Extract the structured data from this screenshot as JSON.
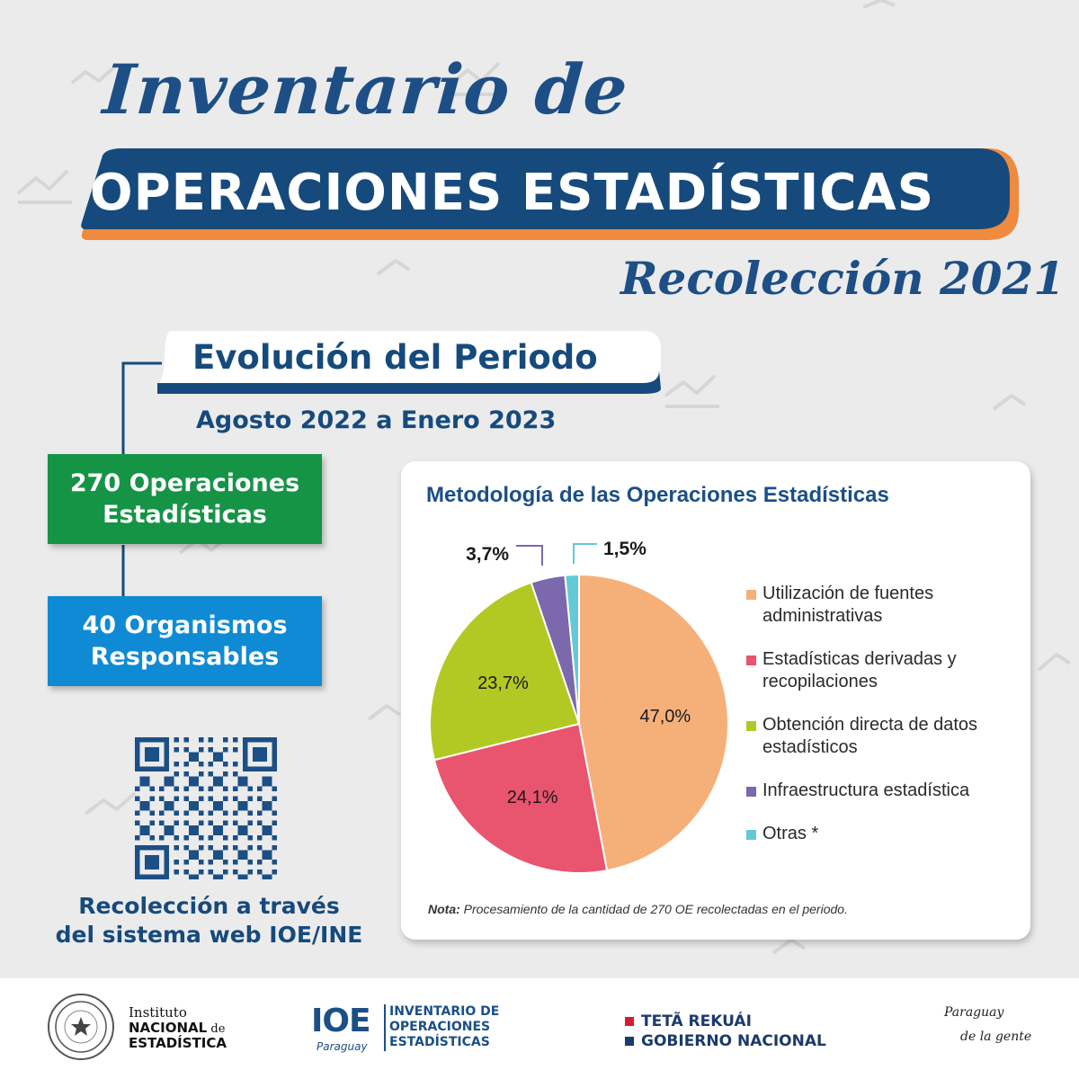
{
  "header": {
    "title_line1": "Inventario de",
    "title_banner": "OPERACIONES ESTADÍSTICAS",
    "title_sub": "Recolección 2021"
  },
  "period": {
    "title": "Evolución del Periodo",
    "range": "Agosto 2022 a Enero 2023"
  },
  "stats": {
    "operations_line1": "270 Operaciones",
    "operations_line2": "Estadísticas",
    "organisms_line1": "40 Organismos",
    "organisms_line2": "Responsables"
  },
  "collection": {
    "line1": "Recolección a través",
    "line2": "del sistema web IOE/INE"
  },
  "chart_data": {
    "type": "pie",
    "title": "Metodología de las Operaciones Estadísticas",
    "labels": [
      "Utilización de fuentes administrativas",
      "Estadísticas derivadas y recopilaciones",
      "Obtención directa de datos estadísticos",
      "Infraestructura estadística",
      "Otras *"
    ],
    "values": [
      47.0,
      24.1,
      23.7,
      3.7,
      1.5
    ],
    "value_labels": [
      "47,0%",
      "24,1%",
      "23,7%",
      "3,7%",
      "1,5%"
    ],
    "colors": [
      "#f5b07a",
      "#e9546e",
      "#b2c923",
      "#7b68ad",
      "#63c9d6"
    ],
    "legend_position": "right",
    "note_label": "Nota:",
    "note": " Procesamiento de la cantidad de 270 OE recolectadas en el periodo."
  },
  "footer": {
    "ine_line1": "Instituto",
    "ine_line2_bold": "NACIONAL",
    "ine_line2_small": " de",
    "ine_line3": "ESTADÍSTICA",
    "ioe_logo": "IOE",
    "ioe_country": "Paraguay",
    "ioe_text_line1": "INVENTARIO DE",
    "ioe_text_line2": "OPERACIONES",
    "ioe_text_line3": "ESTADÍSTICAS",
    "gov_line1": "TETÃ REKUÁI",
    "gov_line2": "GOBIERNO NACIONAL",
    "slogan_line1": "Paraguay",
    "slogan_line2": "de la gente"
  },
  "colors": {
    "navy": "#164a7d",
    "orange_accent": "#f08a3c",
    "green_box": "#159446",
    "blue_box": "#0e8bd4",
    "gov_red": "#d4202c",
    "gov_blue": "#1b3a6b"
  }
}
